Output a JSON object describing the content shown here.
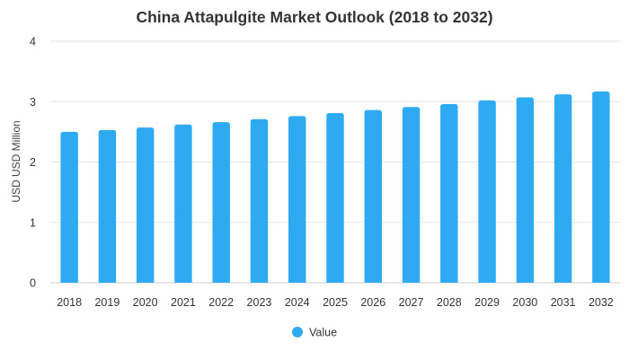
{
  "chart_data": {
    "type": "bar",
    "title": "China Attapulgite Market Outlook (2018 to 2032)",
    "xlabel": "",
    "ylabel": "USD USD Million",
    "categories": [
      "2018",
      "2019",
      "2020",
      "2021",
      "2022",
      "2023",
      "2024",
      "2025",
      "2026",
      "2027",
      "2028",
      "2029",
      "2030",
      "2031",
      "2032"
    ],
    "series": [
      {
        "name": "Value",
        "color": "#2eaaf2",
        "values": [
          2.5,
          2.53,
          2.57,
          2.62,
          2.66,
          2.71,
          2.76,
          2.81,
          2.86,
          2.91,
          2.96,
          3.02,
          3.07,
          3.12,
          3.17
        ]
      }
    ],
    "ylim": [
      0,
      4
    ],
    "yticks": [
      "0",
      "1",
      "2",
      "3",
      "4"
    ],
    "grid": true,
    "legend_position": "bottom-center"
  }
}
